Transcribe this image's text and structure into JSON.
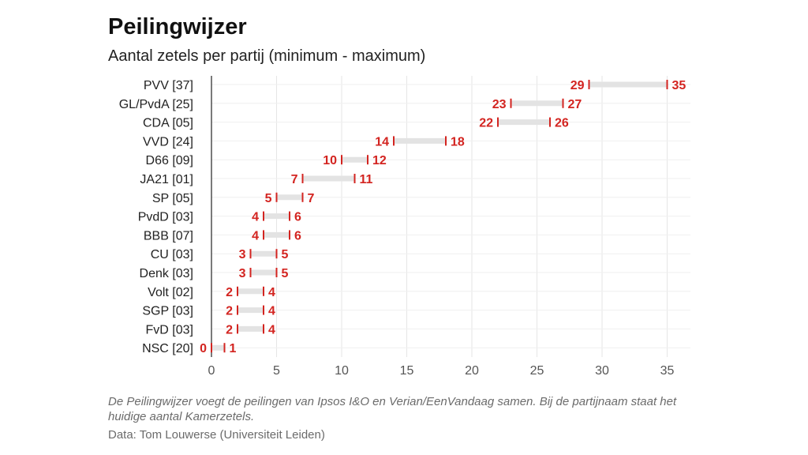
{
  "title": "Peilingwijzer",
  "subtitle": "Aantal zetels per partij (minimum - maximum)",
  "note": "De Peilingwijzer voegt de peilingen van Ipsos I&O en Verian/EenVandaag samen. Bij de partijnaam staat het huidige aantal Kamerzetels.",
  "source": "Data: Tom Louwerse (Universiteit Leiden)",
  "colors": {
    "accent": "#d32420",
    "range_bar": "#e3e3e3",
    "grid": "#e6e6e6",
    "axis": "#222222"
  },
  "chart_data": {
    "type": "range",
    "title": "Peilingwijzer",
    "subtitle": "Aantal zetels per partij (minimum - maximum)",
    "xlim": [
      0,
      36
    ],
    "xticks": [
      0,
      5,
      10,
      15,
      20,
      25,
      30,
      35
    ],
    "categories": [
      "PVV [37]",
      "GL/PvdA [25]",
      "CDA [05]",
      "VVD [24]",
      "D66 [09]",
      "JA21 [01]",
      "SP [05]",
      "PvdD [03]",
      "BBB [07]",
      "CU [03]",
      "Denk [03]",
      "Volt [02]",
      "SGP [03]",
      "FvD [03]",
      "NSC [20]"
    ],
    "series": [
      {
        "name": "minimum",
        "values": [
          29,
          23,
          22,
          14,
          10,
          7,
          5,
          4,
          4,
          3,
          3,
          2,
          2,
          2,
          0
        ]
      },
      {
        "name": "maximum",
        "values": [
          35,
          27,
          26,
          18,
          12,
          11,
          7,
          6,
          6,
          5,
          5,
          4,
          4,
          4,
          1
        ]
      }
    ]
  }
}
